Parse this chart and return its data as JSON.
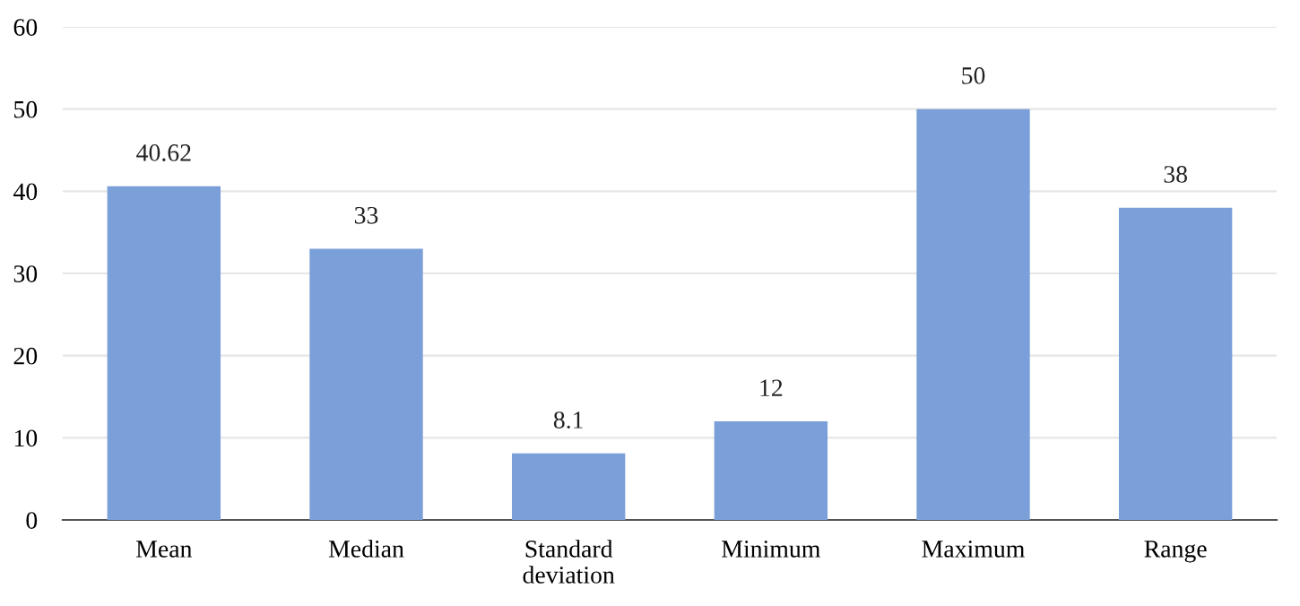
{
  "chart_data": {
    "type": "bar",
    "categories": [
      "Mean",
      "Median",
      "Standard deviation",
      "Minimum",
      "Maximum",
      "Range"
    ],
    "values": [
      40.62,
      33,
      8.1,
      12,
      50,
      38
    ],
    "color": "#7b9fd8",
    "data_labels": true,
    "ylim": [
      0,
      60
    ],
    "yticks": [
      0,
      10,
      20,
      30,
      40,
      50,
      60
    ],
    "grid": "y"
  }
}
